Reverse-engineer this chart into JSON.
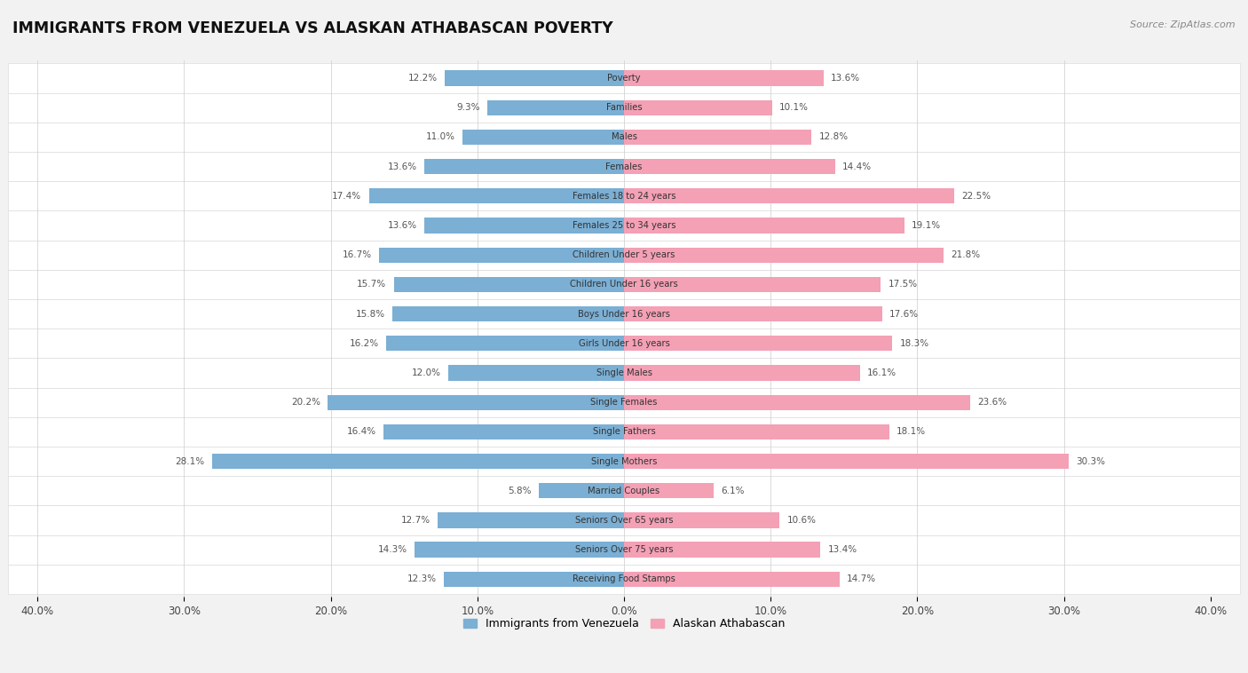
{
  "title": "IMMIGRANTS FROM VENEZUELA VS ALASKAN ATHABASCAN POVERTY",
  "source": "Source: ZipAtlas.com",
  "categories": [
    "Poverty",
    "Families",
    "Males",
    "Females",
    "Females 18 to 24 years",
    "Females 25 to 34 years",
    "Children Under 5 years",
    "Children Under 16 years",
    "Boys Under 16 years",
    "Girls Under 16 years",
    "Single Males",
    "Single Females",
    "Single Fathers",
    "Single Mothers",
    "Married Couples",
    "Seniors Over 65 years",
    "Seniors Over 75 years",
    "Receiving Food Stamps"
  ],
  "venezuela_values": [
    12.2,
    9.3,
    11.0,
    13.6,
    17.4,
    13.6,
    16.7,
    15.7,
    15.8,
    16.2,
    12.0,
    20.2,
    16.4,
    28.1,
    5.8,
    12.7,
    14.3,
    12.3
  ],
  "athabascan_values": [
    13.6,
    10.1,
    12.8,
    14.4,
    22.5,
    19.1,
    21.8,
    17.5,
    17.6,
    18.3,
    16.1,
    23.6,
    18.1,
    30.3,
    6.1,
    10.6,
    13.4,
    14.7
  ],
  "venezuela_color": "#7bafd4",
  "athabascan_color": "#f4a0b5",
  "background_color": "#f2f2f2",
  "row_color_white": "#ffffff",
  "row_color_light": "#f2f2f2",
  "xlim": 40.0,
  "legend_label_venezuela": "Immigrants from Venezuela",
  "legend_label_athabascan": "Alaskan Athabascan"
}
